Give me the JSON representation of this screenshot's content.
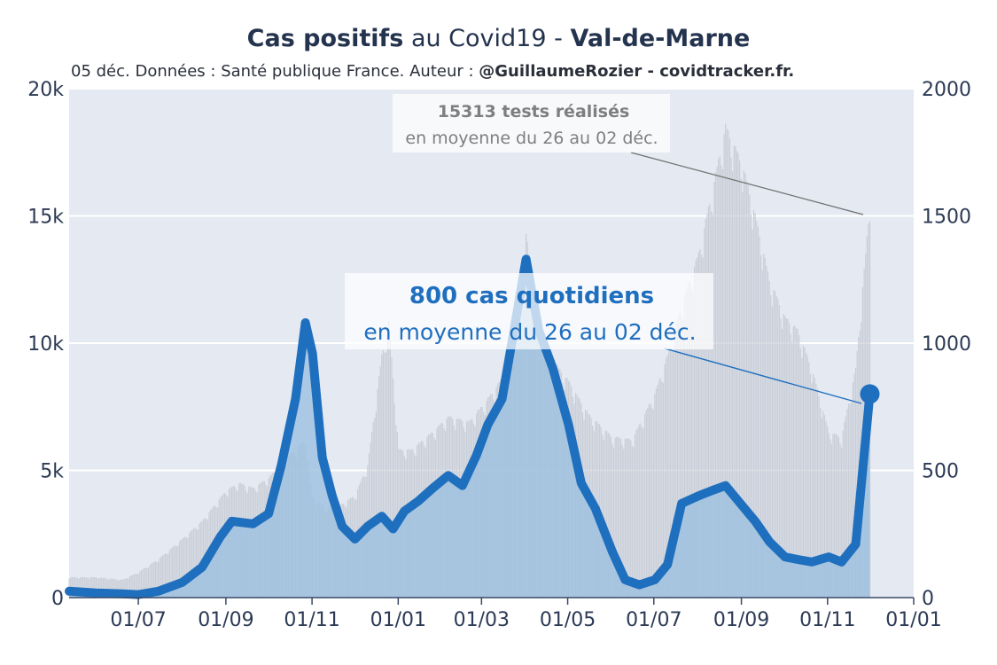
{
  "title": {
    "bold_part": "Cas positifs",
    "middle_part": " au Covid19 - ",
    "region": "Val-de-Marne"
  },
  "subtitle": {
    "text": "05 déc. Données : Santé publique France. Auteur : ",
    "author": "@GuillaumeRozier - covidtracker.fr."
  },
  "annotations": {
    "tests_bold": "15313 tests réalisés",
    "tests_sub": "en moyenne du 26 au 02 déc.",
    "cases_bold": "800 cas quotidiens",
    "cases_sub": "en moyenne du 26 au 02 déc."
  },
  "colors": {
    "cases_line": "#1f6fbf",
    "cases_fill": "#9cc0e0",
    "tests_bars": "#c5cbd4",
    "plot_bg": "#e4e9f2",
    "annotation_cases": "#1f6fbf",
    "annotation_tests": "#7f7f7f"
  },
  "chart_data": {
    "type": "area",
    "x_tick_labels": [
      "01/07",
      "01/09",
      "01/11",
      "01/01",
      "01/03",
      "01/05",
      "01/07",
      "01/09",
      "01/11",
      "01/01"
    ],
    "left_axis": {
      "ticks": [
        "0",
        "5k",
        "10k",
        "15k",
        "20k"
      ],
      "range": [
        0,
        20000
      ],
      "series": "tests"
    },
    "right_axis": {
      "ticks": [
        "0",
        "500",
        "1000",
        "1500",
        "2000"
      ],
      "range": [
        0,
        2000
      ],
      "series": "cases"
    },
    "x_range": [
      "2020-05-13",
      "2021-12-31"
    ],
    "grid": true,
    "series": [
      {
        "name": "cases",
        "type": "line",
        "axis": "right",
        "x": [
          "2020-05-13",
          "2020-06-01",
          "2020-06-20",
          "2020-07-01",
          "2020-07-15",
          "2020-08-01",
          "2020-08-15",
          "2020-08-28",
          "2020-09-05",
          "2020-09-20",
          "2020-10-01",
          "2020-10-10",
          "2020-10-20",
          "2020-10-27",
          "2020-11-01",
          "2020-11-08",
          "2020-11-15",
          "2020-11-22",
          "2020-12-01",
          "2020-12-10",
          "2020-12-20",
          "2020-12-28",
          "2021-01-05",
          "2021-01-15",
          "2021-01-25",
          "2021-02-05",
          "2021-02-15",
          "2021-02-25",
          "2021-03-05",
          "2021-03-15",
          "2021-03-25",
          "2021-04-01",
          "2021-04-10",
          "2021-04-20",
          "2021-05-01",
          "2021-05-10",
          "2021-05-20",
          "2021-06-01",
          "2021-06-10",
          "2021-06-20",
          "2021-07-01",
          "2021-07-10",
          "2021-07-20",
          "2021-08-01",
          "2021-08-10",
          "2021-08-20",
          "2021-09-01",
          "2021-09-10",
          "2021-09-20",
          "2021-10-01",
          "2021-10-10",
          "2021-10-20",
          "2021-11-01",
          "2021-11-10",
          "2021-11-20",
          "2021-11-30"
        ],
        "values": [
          25,
          18,
          15,
          12,
          25,
          60,
          120,
          240,
          300,
          290,
          330,
          520,
          780,
          1080,
          960,
          550,
          400,
          280,
          230,
          280,
          320,
          270,
          340,
          380,
          430,
          480,
          440,
          560,
          680,
          780,
          1100,
          1330,
          1050,
          900,
          680,
          450,
          350,
          180,
          70,
          50,
          70,
          130,
          370,
          400,
          420,
          440,
          360,
          300,
          220,
          160,
          150,
          140,
          160,
          140,
          210,
          800
        ]
      },
      {
        "name": "tests",
        "type": "bar",
        "axis": "left",
        "x": [
          "2020-05-13",
          "2020-06-01",
          "2020-06-20",
          "2020-07-01",
          "2020-07-15",
          "2020-08-01",
          "2020-08-15",
          "2020-09-01",
          "2020-09-10",
          "2020-09-20",
          "2020-10-01",
          "2020-10-15",
          "2020-10-27",
          "2020-11-01",
          "2020-11-10",
          "2020-11-20",
          "2020-12-01",
          "2020-12-10",
          "2020-12-20",
          "2020-12-25",
          "2021-01-01",
          "2021-01-10",
          "2021-01-25",
          "2021-02-05",
          "2021-02-20",
          "2021-03-05",
          "2021-03-20",
          "2021-04-01",
          "2021-04-10",
          "2021-04-20",
          "2021-05-01",
          "2021-05-15",
          "2021-06-01",
          "2021-06-15",
          "2021-07-01",
          "2021-07-10",
          "2021-07-20",
          "2021-08-01",
          "2021-08-10",
          "2021-08-20",
          "2021-09-01",
          "2021-09-10",
          "2021-09-20",
          "2021-10-01",
          "2021-10-10",
          "2021-10-20",
          "2021-11-01",
          "2021-11-10",
          "2021-11-20",
          "2021-11-30"
        ],
        "values": [
          800,
          800,
          700,
          1000,
          1500,
          2300,
          3000,
          4200,
          4500,
          4300,
          4700,
          5500,
          6200,
          4000,
          3500,
          3600,
          4000,
          5200,
          9500,
          10800,
          5800,
          5800,
          6500,
          7100,
          6900,
          7800,
          9000,
          14300,
          10500,
          9300,
          8500,
          7200,
          6300,
          6200,
          8000,
          9500,
          11500,
          13500,
          15800,
          18500,
          17000,
          15000,
          12500,
          11000,
          10500,
          9000,
          6500,
          6300,
          9000,
          15400
        ]
      }
    ]
  }
}
